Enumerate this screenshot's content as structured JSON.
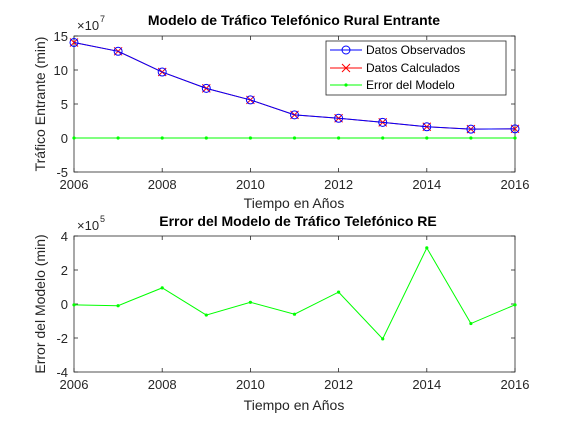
{
  "chart_data": [
    {
      "type": "line",
      "title": "Modelo de Tráfico Telefónico Rural Entrante",
      "xlabel": "Tiempo en Años",
      "ylabel": "Tráfico Entrante (min)",
      "y_exponent_base": "×10",
      "y_exponent": "7",
      "x": [
        2006,
        2007,
        2008,
        2009,
        2010,
        2011,
        2012,
        2013,
        2014,
        2015,
        2016
      ],
      "xlim": [
        2006,
        2016
      ],
      "ylim": [
        -5,
        15
      ],
      "x_ticks": [
        "2006",
        "2008",
        "2010",
        "2012",
        "2014",
        "2016"
      ],
      "y_ticks": [
        "-5",
        "0",
        "5",
        "10",
        "15"
      ],
      "legend_position": "top-right",
      "series": [
        {
          "name": "Datos Observados",
          "color": "#0000ff",
          "marker": "circle",
          "values": [
            14.05,
            12.75,
            9.7,
            7.3,
            5.6,
            3.4,
            2.9,
            2.3,
            1.65,
            1.3,
            1.35
          ]
        },
        {
          "name": "Datos Calculados",
          "color": "#ff0000",
          "marker": "x",
          "values": [
            14.05,
            12.75,
            9.7,
            7.3,
            5.6,
            3.4,
            2.9,
            2.3,
            1.65,
            1.3,
            1.35
          ]
        },
        {
          "name": "Error del Modelo",
          "color": "#00ff00",
          "marker": "dot",
          "values": [
            0,
            0,
            0,
            0,
            0,
            0,
            0,
            0,
            0,
            0,
            0
          ]
        }
      ]
    },
    {
      "type": "line",
      "title": "Error del Modelo de Tráfico Telefónico RE",
      "xlabel": "Tiempo en Años",
      "ylabel": "Error del Modelo (min)",
      "y_exponent_base": "×10",
      "y_exponent": "5",
      "x": [
        2006,
        2007,
        2008,
        2009,
        2010,
        2011,
        2012,
        2013,
        2014,
        2015,
        2016
      ],
      "xlim": [
        2006,
        2016
      ],
      "ylim": [
        -4,
        4
      ],
      "x_ticks": [
        "2006",
        "2008",
        "2010",
        "2012",
        "2014",
        "2016"
      ],
      "y_ticks": [
        "-4",
        "-2",
        "0",
        "2",
        "4"
      ],
      "series": [
        {
          "color": "#00ff00",
          "marker": "dot",
          "values": [
            -0.05,
            -0.1,
            0.95,
            -0.65,
            0.1,
            -0.6,
            0.7,
            -2.05,
            3.3,
            -1.15,
            -0.05
          ]
        }
      ]
    }
  ]
}
